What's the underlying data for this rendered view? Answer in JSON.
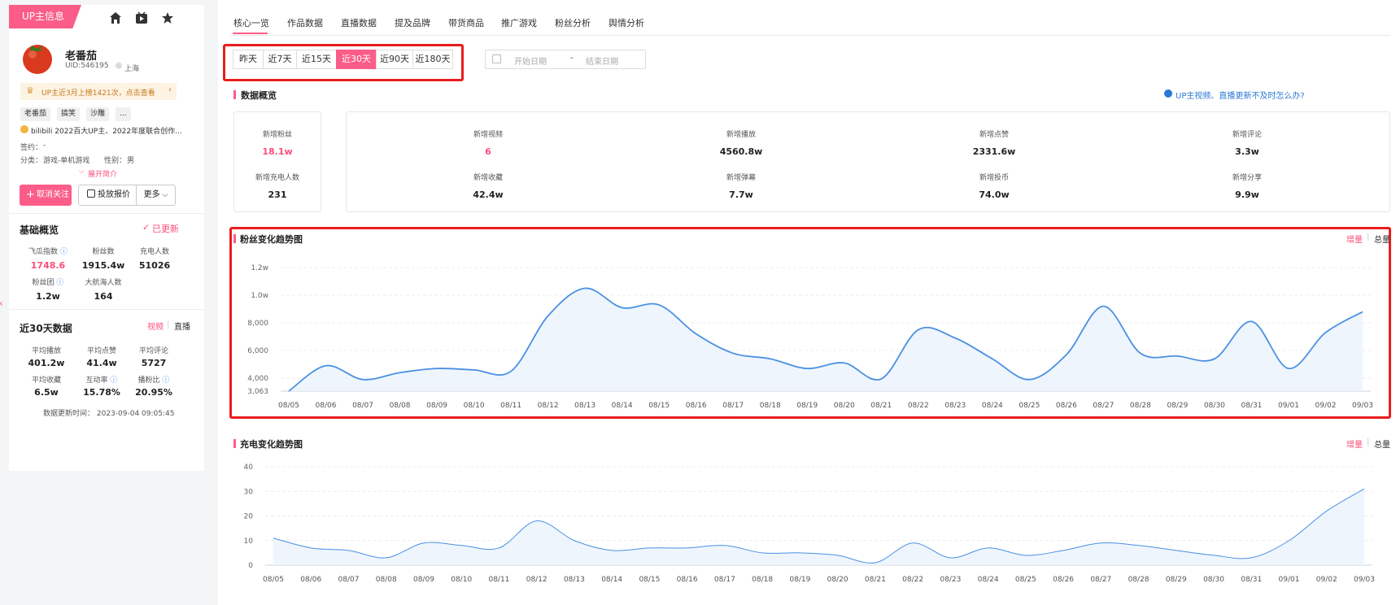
{
  "left": {
    "tab": "UP主信息",
    "name": "老番茄",
    "uid": "UID:546195",
    "location": "上海",
    "rank_banner": "UP主近3月上榜1421次，点击查看",
    "tags": [
      "老番茄",
      "搞笑",
      "沙雕",
      "..."
    ],
    "desc": "bilibili 2022百大UP主、2022年度联合创作...",
    "sign_label": "签约：",
    "sign_value": "-",
    "category_label": "分类：",
    "category_value": "游戏-单机游戏",
    "gender_label": "性别：",
    "gender_value": "男",
    "expand": "展开简介",
    "follow_btn": "取消关注",
    "quote_btn": "投放报价",
    "more_btn": "更多",
    "basic_title": "基础概览",
    "updated": "已更新",
    "basic": [
      {
        "label": "飞瓜指数",
        "value": "1748.6"
      },
      {
        "label": "粉丝数",
        "value": "1915.4w"
      },
      {
        "label": "充电人数",
        "value": "51026"
      },
      {
        "label": "粉丝团",
        "value": "1.2w"
      },
      {
        "label": "大航海人数",
        "value": "164"
      }
    ],
    "recent_title": "近30天数据",
    "recent_tab_video": "视频",
    "recent_tab_live": "直播",
    "recent": [
      {
        "label": "平均播放",
        "value": "401.2w"
      },
      {
        "label": "平均点赞",
        "value": "41.4w"
      },
      {
        "label": "平均评论",
        "value": "5727"
      },
      {
        "label": "平均收藏",
        "value": "6.5w"
      },
      {
        "label": "互动率",
        "value": "15.78%"
      },
      {
        "label": "播粉比",
        "value": "20.95%"
      }
    ],
    "update_time": "数据更新时间：  2023-09-04 09:05:45"
  },
  "tabs": [
    "核心一览",
    "作品数据",
    "直播数据",
    "提及品牌",
    "带货商品",
    "推广游戏",
    "粉丝分析",
    "舆情分析"
  ],
  "ranges": [
    "昨天",
    "近7天",
    "近15天",
    "近30天",
    "近90天",
    "近180天"
  ],
  "date_start": "开始日期",
  "date_sep": "-",
  "date_end": "结束日期",
  "overview_title": "数据概览",
  "help_link": "UP主视频、直播更新不及时怎么办?",
  "overview_left": [
    {
      "label": "新增粉丝",
      "value": "18.1w"
    },
    {
      "label": "新增充电人数",
      "value": "231"
    }
  ],
  "overview": [
    {
      "label": "新增视频",
      "value": "6"
    },
    {
      "label": "新增播放",
      "value": "4560.8w"
    },
    {
      "label": "新增点赞",
      "value": "2331.6w"
    },
    {
      "label": "新增评论",
      "value": "3.3w"
    },
    {
      "label": "新增收藏",
      "value": "42.4w"
    },
    {
      "label": "新增弹幕",
      "value": "7.7w"
    },
    {
      "label": "新增投币",
      "value": "74.0w"
    },
    {
      "label": "新增分享",
      "value": "9.9w"
    }
  ],
  "toggle_inc": "增量",
  "toggle_total": "总量",
  "chart_data": [
    {
      "type": "area",
      "title": "粉丝变化趋势图",
      "x": [
        "08/05",
        "08/06",
        "08/07",
        "08/08",
        "08/09",
        "08/10",
        "08/11",
        "08/12",
        "08/13",
        "08/14",
        "08/15",
        "08/16",
        "08/17",
        "08/18",
        "08/19",
        "08/20",
        "08/21",
        "08/22",
        "08/23",
        "08/24",
        "08/25",
        "08/26",
        "08/27",
        "08/28",
        "08/29",
        "08/30",
        "08/31",
        "09/01",
        "09/02",
        "09/03"
      ],
      "values": [
        3063,
        4900,
        3900,
        4400,
        4700,
        4600,
        4500,
        8500,
        10500,
        9100,
        9300,
        7200,
        5800,
        5400,
        4700,
        5100,
        3950,
        7500,
        6900,
        5400,
        3900,
        5700,
        9200,
        5800,
        5600,
        5400,
        8100,
        4700,
        7300,
        8800
      ],
      "yticks": [
        3063,
        4000,
        6000,
        8000,
        10000,
        12000
      ],
      "yticklabels": [
        "3,063",
        "4,000",
        "6,000",
        "8,000",
        "1.0w",
        "1.2w"
      ],
      "ylim": [
        3063,
        12000
      ],
      "grid": true,
      "color": "#4a90e2"
    },
    {
      "type": "area",
      "title": "充电变化趋势图",
      "x": [
        "08/05",
        "08/06",
        "08/07",
        "08/08",
        "08/09",
        "08/10",
        "08/11",
        "08/12",
        "08/13",
        "08/14",
        "08/15",
        "08/16",
        "08/17",
        "08/18",
        "08/19",
        "08/20",
        "08/21",
        "08/22",
        "08/23",
        "08/24",
        "08/25",
        "08/26",
        "08/27",
        "08/28",
        "08/29",
        "08/30",
        "08/31",
        "09/01",
        "09/02",
        "09/03"
      ],
      "values": [
        11,
        7,
        6,
        3,
        9,
        8,
        7,
        18,
        10,
        6,
        7,
        7,
        8,
        5,
        5,
        4,
        1,
        9,
        3,
        7,
        4,
        6,
        9,
        8,
        6,
        4,
        3,
        10,
        22,
        31
      ],
      "yticks": [
        0,
        10,
        20,
        30,
        40
      ],
      "ylim": [
        0,
        40
      ],
      "grid": true,
      "color": "#4a90e2"
    }
  ]
}
